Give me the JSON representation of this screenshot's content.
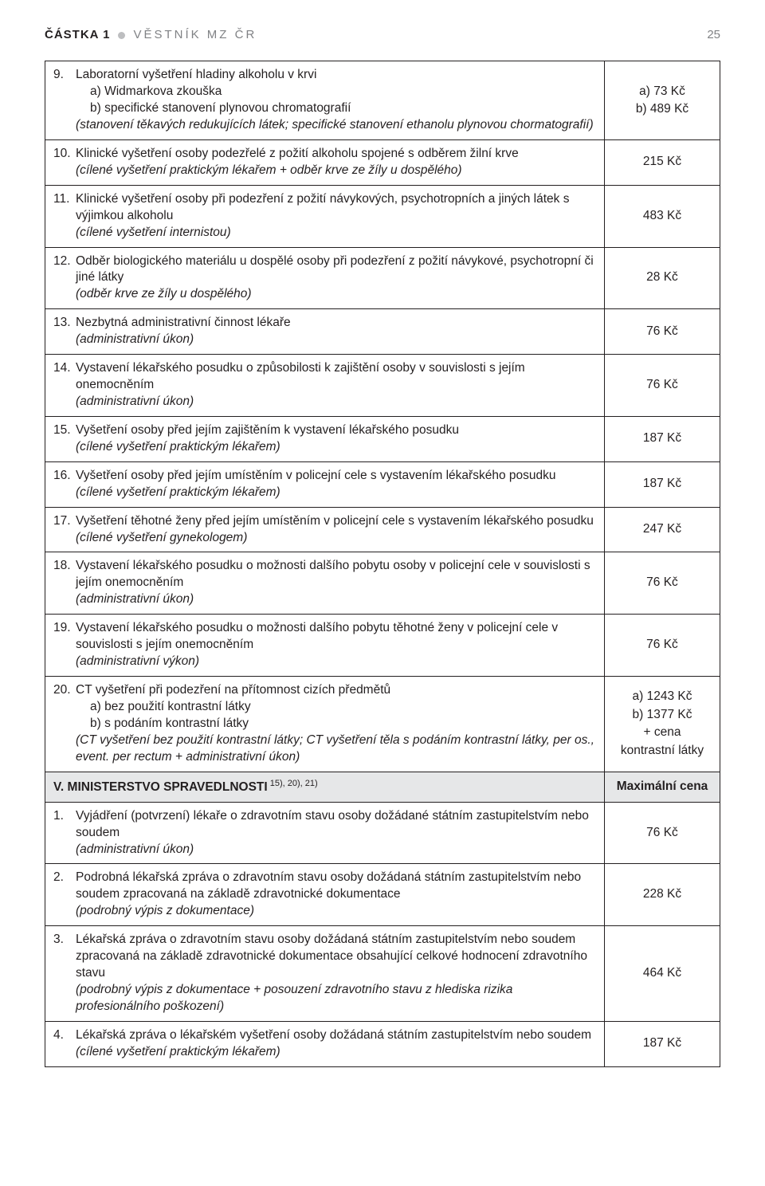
{
  "header": {
    "left": "ČÁSTKA 1",
    "mid": "VĚSTNÍK MZ ČR",
    "page_no": "25"
  },
  "rows": [
    {
      "num": "9.",
      "title": "Laboratorní vyšetření hladiny alkoholu v krvi",
      "sub_a": "a)  Widmarkova zkouška",
      "sub_b": "b)  specifické stanovení plynovou chromatografií",
      "note": "(stanovení těkavých redukujících látek; specifické stanovení ethanolu plynovou chormatografií)",
      "price_a": "a) 73 Kč",
      "price_b": "b) 489 Kč"
    },
    {
      "num": "10.",
      "title": "Klinické vyšetření osoby podezřelé z požití alkoholu spojené s odběrem žilní krve",
      "note": "(cílené vyšetření praktickým lékařem + odběr krve ze žíly u dospělého)",
      "price": "215 Kč"
    },
    {
      "num": "11.",
      "title": "Klinické vyšetření osoby při podezření z požití návykových, psychotropních a jiných látek s výjimkou alkoholu",
      "note": "(cílené vyšetření internistou)",
      "price": "483 Kč"
    },
    {
      "num": "12.",
      "title": "Odběr biologického materiálu u dospělé osoby při podezření z požití návykové, psychotropní či jiné látky",
      "note": "(odběr krve ze žíly u dospělého)",
      "price": "28 Kč"
    },
    {
      "num": "13.",
      "title": "Nezbytná administrativní činnost lékaře",
      "note": "(administrativní úkon)",
      "price": "76 Kč"
    },
    {
      "num": "14.",
      "title": "Vystavení lékařského posudku o způsobilosti k zajištění osoby v souvislosti s jejím onemocněním",
      "note": "(administrativní úkon)",
      "price": "76 Kč"
    },
    {
      "num": "15.",
      "title": "Vyšetření osoby před jejím zajištěním k vystavení lékařského posudku",
      "note": "(cílené vyšetření praktickým lékařem)",
      "price": "187 Kč"
    },
    {
      "num": "16.",
      "title": "Vyšetření osoby před jejím umístěním v policejní cele s vystavením lékařského posudku",
      "note": "(cílené vyšetření praktickým lékařem)",
      "price": "187 Kč"
    },
    {
      "num": "17.",
      "title": "Vyšetření těhotné ženy před jejím umístěním v policejní cele s vystavením lékařského posudku",
      "note": "(cílené vyšetření gynekologem)",
      "price": "247 Kč"
    },
    {
      "num": "18.",
      "title": "Vystavení lékařského posudku o možnosti dalšího pobytu osoby v policejní cele v souvislosti s jejím onemocněním",
      "note": "(administrativní úkon)",
      "price": "76 Kč"
    },
    {
      "num": "19.",
      "title": "Vystavení lékařského posudku o možnosti dalšího pobytu těhotné ženy v policejní cele v souvislosti s jejím onemocněním",
      "note": "(administrativní výkon)",
      "price": "76 Kč"
    },
    {
      "num": "20.",
      "title": "CT vyšetření při podezření na přítomnost cizích předmětů",
      "sub_a": "a)  bez použití kontrastní látky",
      "sub_b": "b)  s podáním kontrastní látky",
      "note": "(CT vyšetření bez použití kontrastní látky;  CT vyšetření těla s podáním kontrastní látky, per os., event. per rectum + administrativní úkon)",
      "price_a": "a) 1243 Kč",
      "price_b": "b) 1377 Kč",
      "price_c": "+ cena",
      "price_d": "kontrastní látky"
    }
  ],
  "section": {
    "label_prefix": "V.  ",
    "label_main": "MINISTERSTVO SPRAVEDLNOSTI",
    "label_sup": " 15), 20), 21)",
    "price_header": "Maximální cena"
  },
  "rows2": [
    {
      "num": "1.",
      "title": "Vyjádření (potvrzení) lékaře o zdravotním stavu osoby dožádané státním zastupitelstvím nebo soudem",
      "note": "(administrativní úkon)",
      "price": "76 Kč"
    },
    {
      "num": "2.",
      "title": "Podrobná lékařská zpráva o zdravotním stavu osoby dožádaná státním zastupitelstvím nebo soudem zpracovaná na základě zdravotnické dokumentace",
      "note": "(podrobný výpis z dokumentace)",
      "price": "228 Kč"
    },
    {
      "num": "3.",
      "title": "Lékařská zpráva o zdravotním stavu osoby dožádaná státním zastupitelstvím nebo soudem zpracovaná na základě zdravotnické dokumentace obsahující celkové hodnocení zdravotního stavu",
      "note": "(podrobný výpis z dokumentace + posouzení zdravotního stavu z hlediska rizika profesionálního poškození)",
      "price": "464 Kč"
    },
    {
      "num": "4.",
      "title": "Lékařská zpráva o lékařském vyšetření osoby dožádaná státním zastupitelstvím nebo soudem",
      "note": "(cílené vyšetření praktickým lékařem)",
      "price": "187 Kč"
    }
  ]
}
